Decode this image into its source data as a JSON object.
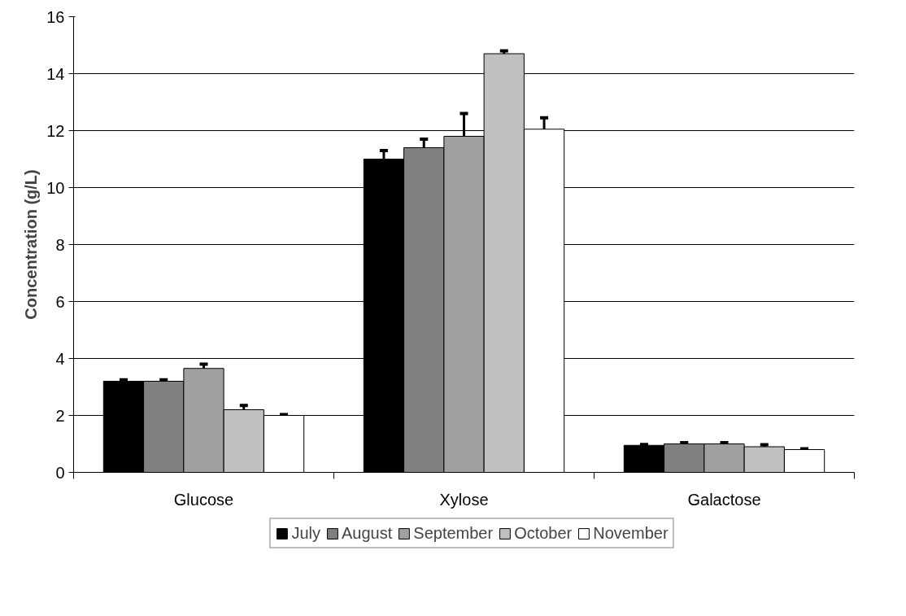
{
  "chart_data": {
    "type": "bar",
    "ylabel": "Concentration (g/L)",
    "categories": [
      "Glucose",
      "Xylose",
      "Galactose"
    ],
    "series": [
      {
        "name": "July",
        "color": "#000000",
        "values": [
          3.2,
          11.0,
          0.95
        ],
        "errors": [
          0.05,
          0.3,
          0.03
        ]
      },
      {
        "name": "August",
        "color": "#808080",
        "values": [
          3.2,
          11.4,
          1.0
        ],
        "errors": [
          0.05,
          0.3,
          0.04
        ]
      },
      {
        "name": "September",
        "color": "#a0a0a0",
        "values": [
          3.65,
          11.8,
          1.0
        ],
        "errors": [
          0.15,
          0.8,
          0.04
        ]
      },
      {
        "name": "October",
        "color": "#c0c0c0",
        "values": [
          2.2,
          14.7,
          0.9
        ],
        "errors": [
          0.15,
          0.1,
          0.07
        ]
      },
      {
        "name": "November",
        "color": "#ffffff",
        "values": [
          2.0,
          12.05,
          0.8
        ],
        "errors": [
          0.03,
          0.4,
          0.03
        ]
      }
    ],
    "ylim": [
      0,
      16
    ],
    "yticks": [
      0,
      2,
      4,
      6,
      8,
      10,
      12,
      14,
      16
    ],
    "grid": "y",
    "legend": "bottom"
  }
}
